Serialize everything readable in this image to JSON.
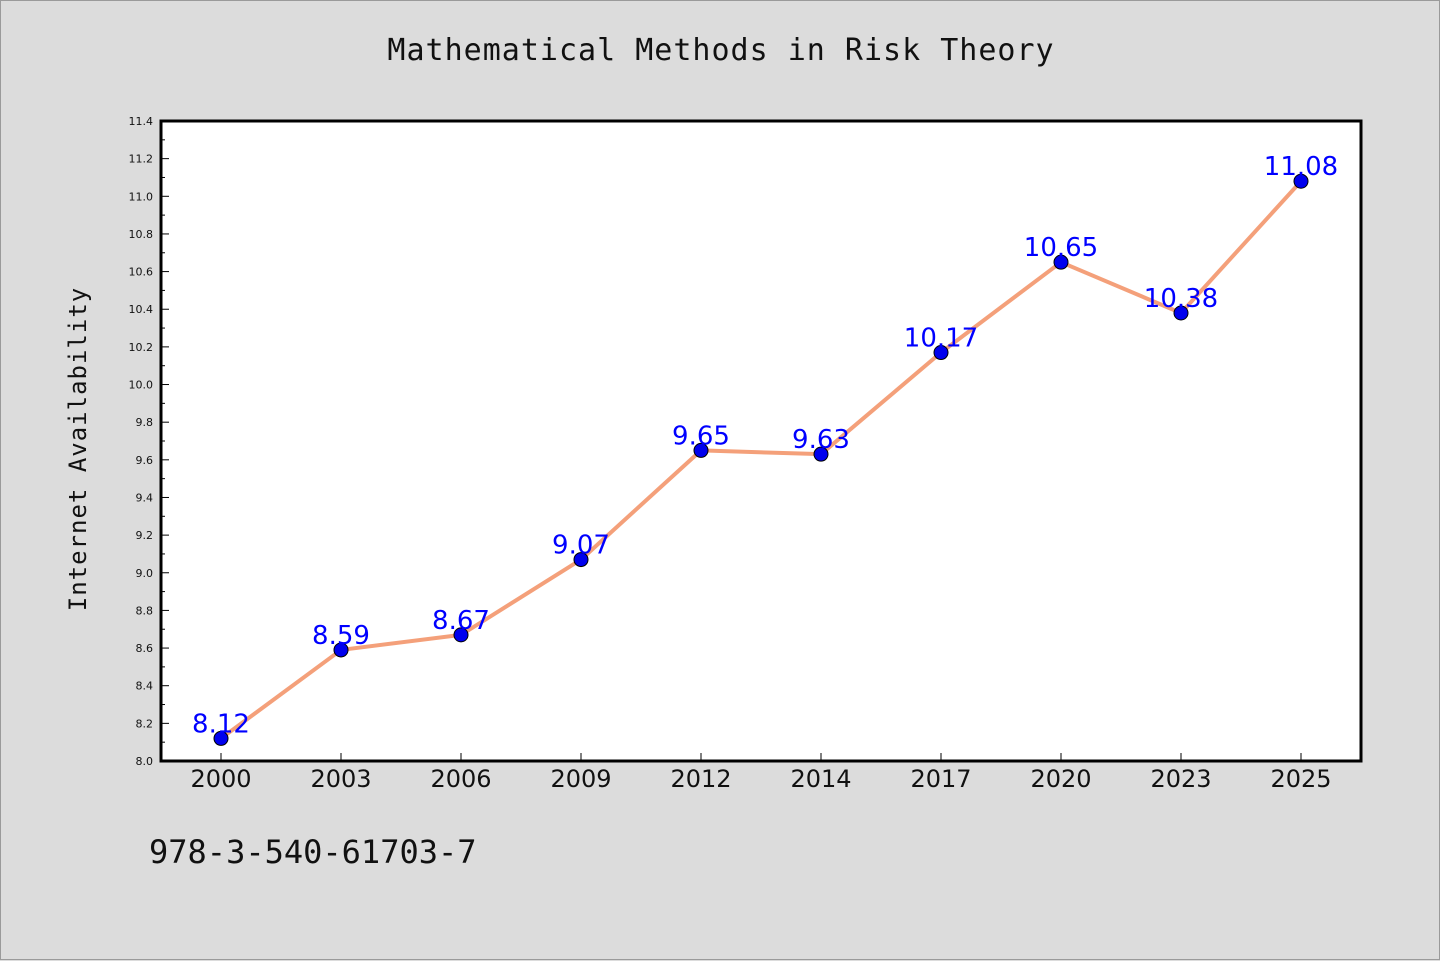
{
  "chart_data": {
    "type": "line",
    "title": "Mathematical Methods in Risk Theory",
    "xlabel": "",
    "ylabel": "Internet Availability",
    "categories": [
      "2000",
      "2003",
      "2006",
      "2009",
      "2012",
      "2014",
      "2017",
      "2020",
      "2023",
      "2025"
    ],
    "series": [
      {
        "values": [
          8.12,
          8.59,
          8.67,
          9.07,
          9.65,
          9.63,
          10.17,
          10.65,
          10.38,
          11.08
        ],
        "line_color": "#f4a07a",
        "marker_color": "#0000ee"
      }
    ],
    "ylim": [
      8.0,
      11.4
    ],
    "yticks": [
      "8.0",
      "8.2",
      "8.4",
      "8.6",
      "8.8",
      "9.0",
      "9.2",
      "9.4",
      "9.6",
      "9.8",
      "10.0",
      "10.2",
      "10.4",
      "10.6",
      "10.8",
      "11.0",
      "11.2",
      "11.4"
    ],
    "data_labels": [
      "8.12",
      "8.59",
      "8.67",
      "9.07",
      "9.65",
      "9.63",
      "10.17",
      "10.65",
      "10.38",
      "11.08"
    ],
    "data_label_color": "#0000ff",
    "grid": false,
    "legend": "none"
  },
  "footer": {
    "code": "978-3-540-61703-7"
  }
}
